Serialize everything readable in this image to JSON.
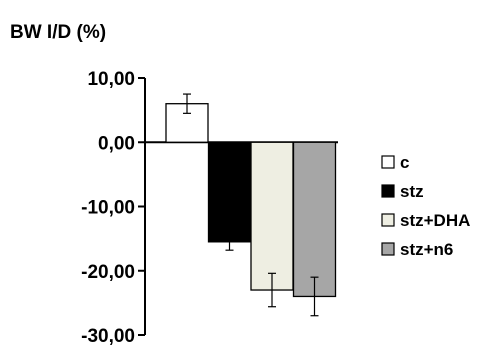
{
  "chart_data": {
    "type": "bar",
    "title": "BW I/D (%)",
    "xlabel": "",
    "ylabel": "",
    "ylim": [
      -30,
      10
    ],
    "yticks": [
      10,
      0,
      -10,
      -20,
      -30
    ],
    "ytick_labels": [
      "10,00",
      "0,00",
      "-10,00",
      "-20,00",
      "-30,00"
    ],
    "grid": false,
    "legend_position": "right",
    "series": [
      {
        "name": "c",
        "value": 6.0,
        "error": 1.5,
        "color": "#ffffff"
      },
      {
        "name": "stz",
        "value": -15.5,
        "error": 1.3,
        "color": "#000000"
      },
      {
        "name": "stz+DHA",
        "value": -23.0,
        "error": 2.6,
        "color": "#eeeee2"
      },
      {
        "name": "stz+n6",
        "value": -24.0,
        "error": 3.0,
        "color": "#a6a6a6"
      }
    ]
  }
}
